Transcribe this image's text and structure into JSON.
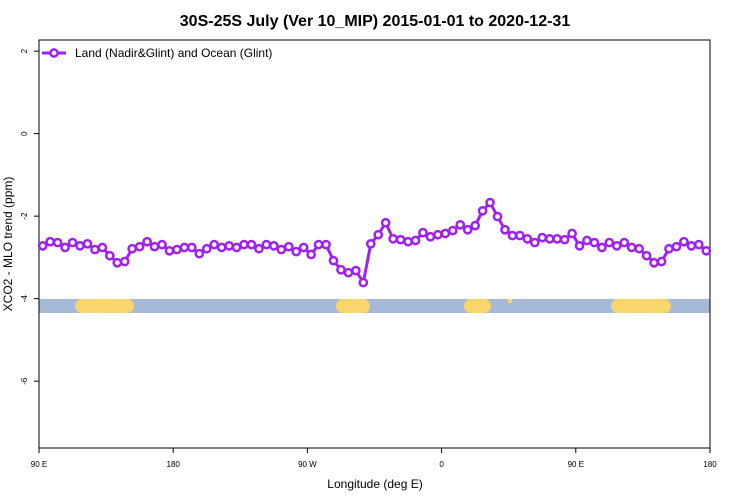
{
  "chart_data": {
    "type": "line",
    "title": "30S-25S July (Ver 10_MIP)   2015-01-01 to 2020-12-31",
    "x_label": "Longitude (deg E)",
    "y_label": "XCO2 - MLO trend (ppm)",
    "xlim": [
      90,
      540
    ],
    "ylim": [
      -7.62,
      2.27
    ],
    "xticks": [
      {
        "value": 90,
        "label": "90 E"
      },
      180,
      {
        "value": 270,
        "label": "90 W"
      },
      {
        "value": 360,
        "label": "0"
      },
      {
        "value": 450,
        "label": "90 E"
      },
      {
        "value": 540,
        "label": "180"
      }
    ],
    "yticks": [
      2,
      0,
      -2,
      -4,
      -6
    ],
    "legend": "top-left",
    "x": [
      92.5,
      97.5,
      102.5,
      107.5,
      112.5,
      117.5,
      122.5,
      127.5,
      132.5,
      137.5,
      142.5,
      147.5,
      152.5,
      157.5,
      162.5,
      167.5,
      172.5,
      177.5,
      182.5,
      187.5,
      192.5,
      197.5,
      202.5,
      207.5,
      212.5,
      217.5,
      222.5,
      227.5,
      232.5,
      237.5,
      242.5,
      247.5,
      252.5,
      257.5,
      262.5,
      267.5,
      272.5,
      277.5,
      282.5,
      287.5,
      292.5,
      297.5,
      302.5,
      307.5,
      312.5,
      317.5,
      322.5,
      327.5,
      332.5,
      337.5,
      342.5,
      347.5,
      352.5,
      357.5,
      362.5,
      367.5,
      372.5,
      377.5,
      382.5,
      387.5,
      392.5,
      397.5,
      402.5,
      407.5,
      412.5,
      417.5,
      422.5,
      427.5,
      432.5,
      437.5,
      442.5,
      447.5,
      452.5,
      457.5,
      462.5,
      467.5,
      472.5,
      477.5,
      482.5,
      487.5,
      492.5,
      497.5,
      502.5,
      507.5,
      512.5,
      517.5,
      522.5,
      527.5,
      532.5,
      537.5
    ],
    "series": [
      {
        "name": "Land (Nadir&Glint) and Ocean (Glint)",
        "color": "#a020f0",
        "values": [
          -2.72,
          -2.62,
          -2.64,
          -2.76,
          -2.64,
          -2.72,
          -2.67,
          -2.81,
          -2.76,
          -2.96,
          -3.13,
          -3.1,
          -2.79,
          -2.74,
          -2.62,
          -2.74,
          -2.69,
          -2.84,
          -2.81,
          -2.76,
          -2.76,
          -2.91,
          -2.79,
          -2.69,
          -2.76,
          -2.72,
          -2.76,
          -2.69,
          -2.69,
          -2.79,
          -2.69,
          -2.72,
          -2.81,
          -2.74,
          -2.86,
          -2.76,
          -2.93,
          -2.69,
          -2.69,
          -3.08,
          -3.3,
          -3.37,
          -3.32,
          -3.61,
          -2.67,
          -2.45,
          -2.16,
          -2.55,
          -2.57,
          -2.62,
          -2.59,
          -2.4,
          -2.5,
          -2.45,
          -2.42,
          -2.35,
          -2.21,
          -2.33,
          -2.23,
          -1.87,
          -1.67,
          -2.01,
          -2.33,
          -2.47,
          -2.47,
          -2.55,
          -2.64,
          -2.52,
          -2.55,
          -2.55,
          -2.57,
          -2.42,
          -2.72,
          -2.59,
          -2.64,
          -2.76,
          -2.64,
          -2.72,
          -2.64,
          -2.76,
          -2.79,
          -2.96,
          -3.13,
          -3.1,
          -2.79,
          -2.74,
          -2.62,
          -2.72,
          -2.69,
          -2.84
        ]
      }
    ]
  }
}
